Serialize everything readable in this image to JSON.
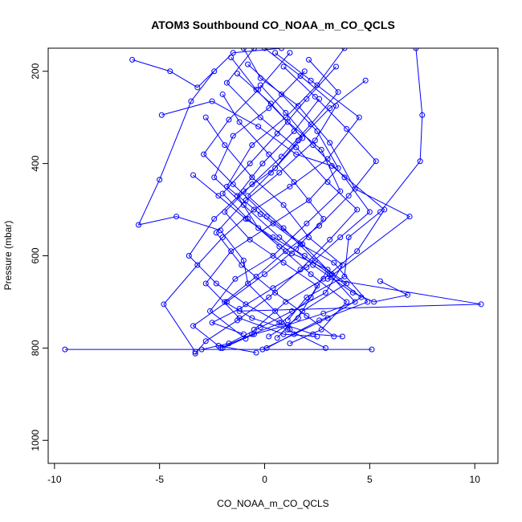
{
  "chart_data": {
    "type": "line",
    "title": "ATOM3 Southbound CO_NOAA_m_CO_QCLS",
    "xlabel": "CO_NOAA_m_CO_QCLS",
    "ylabel": "Pressure (mbar)",
    "xlim": [
      -10.3,
      11.1
    ],
    "ylim": [
      1050,
      150
    ],
    "y_reversed": true,
    "grid": false,
    "legend": "none",
    "x_ticks": [
      -10,
      -5,
      0,
      5,
      10
    ],
    "y_ticks": [
      200,
      400,
      600,
      800,
      1000
    ],
    "marker": "open-circle",
    "color": "#0000ff",
    "series": [
      {
        "x": [
          -9.5,
          5.1
        ],
        "y": [
          803,
          803
        ]
      },
      {
        "x": [
          -6.3,
          -4.5,
          -3.2,
          -1.5,
          0.8
        ],
        "y": [
          175,
          200,
          235,
          160,
          150
        ]
      },
      {
        "x": [
          -2.4,
          -3.5,
          -5.0,
          -6.0,
          -4.2,
          -2.1,
          -1.0,
          -0.8,
          0.5,
          1.2
        ],
        "y": [
          200,
          265,
          435,
          533,
          515,
          545,
          610,
          660,
          720,
          760
        ]
      },
      {
        "x": [
          7.2,
          7.5,
          7.4,
          5.5,
          4.0,
          3.8,
          2.0,
          1.1
        ],
        "y": [
          150,
          295,
          395,
          505,
          560,
          645,
          690,
          740
        ]
      },
      {
        "x": [
          -1.0,
          -0.2,
          1.6,
          3.1,
          4.3,
          6.9,
          3.0,
          10.3,
          -1.2
        ],
        "y": [
          150,
          215,
          275,
          355,
          455,
          515,
          650,
          705,
          720
        ]
      },
      {
        "x": [
          -4.9,
          -2.5,
          -0.3,
          1.5,
          3.2,
          5.7,
          4.4,
          2.8,
          1.0,
          -0.5
        ],
        "y": [
          295,
          265,
          320,
          380,
          405,
          500,
          590,
          650,
          700,
          760
        ]
      },
      {
        "x": [
          0.5,
          2.2,
          4.5,
          3.0,
          1.2,
          -0.5,
          -2.0,
          -3.2,
          -4.8,
          -3.3
        ],
        "y": [
          160,
          220,
          300,
          390,
          450,
          500,
          560,
          620,
          705,
          808
        ]
      },
      {
        "x": [
          -0.8,
          0.8,
          2.5,
          3.5,
          2.1,
          0.4,
          -1.6,
          -2.8,
          -1.2,
          0.9,
          2.5
        ],
        "y": [
          185,
          250,
          330,
          410,
          480,
          530,
          590,
          660,
          735,
          770,
          775
        ]
      },
      {
        "x": [
          1.9,
          0.2,
          -1.5,
          -2.4,
          -1.0,
          0.7,
          2.3,
          4.2,
          5.2,
          6.8,
          5.5
        ],
        "y": [
          200,
          280,
          340,
          430,
          490,
          560,
          620,
          680,
          700,
          685,
          655
        ]
      },
      {
        "x": [
          3.8,
          2.5,
          1.0,
          -0.6,
          -1.8,
          -0.2,
          1.7,
          3.3,
          4.9,
          2.6,
          0.1
        ],
        "y": [
          150,
          230,
          300,
          360,
          450,
          510,
          575,
          615,
          700,
          740,
          800
        ]
      },
      {
        "x": [
          -2.0,
          -1.2,
          0.2,
          1.4,
          2.8,
          1.5,
          0.0,
          -1.8,
          -3.4,
          -2.2,
          -0.4
        ],
        "y": [
          250,
          310,
          380,
          440,
          520,
          585,
          640,
          700,
          752,
          795,
          810
        ]
      },
      {
        "x": [
          4.8,
          3.1,
          1.6,
          0.3,
          -0.8,
          0.9,
          2.4,
          3.9,
          1.8,
          0.6
        ],
        "y": [
          220,
          280,
          350,
          420,
          470,
          540,
          610,
          660,
          720,
          778
        ]
      },
      {
        "x": [
          -1.6,
          -0.4,
          1.1,
          2.7,
          3.6,
          2.0,
          0.4,
          -1.4,
          -2.6,
          -0.9
        ],
        "y": [
          170,
          240,
          310,
          370,
          460,
          530,
          600,
          650,
          720,
          780
        ]
      },
      {
        "x": [
          2.6,
          1.4,
          -0.1,
          -1.3,
          -0.3,
          1.3,
          3.0,
          2.2,
          0.8,
          -0.6,
          -2.1
        ],
        "y": [
          260,
          330,
          400,
          470,
          540,
          595,
          630,
          690,
          745,
          770,
          800
        ]
      },
      {
        "x": [
          0.0,
          1.7,
          3.4,
          2.4,
          0.7,
          -0.9,
          -2.3,
          -1.1,
          0.5,
          2.0,
          3.3
        ],
        "y": [
          150,
          210,
          275,
          350,
          420,
          480,
          550,
          620,
          680,
          730,
          775
        ]
      },
      {
        "x": [
          -2.8,
          -1.9,
          -0.6,
          0.9,
          2.1,
          3.7,
          2.9,
          1.3,
          -0.2,
          -1.7,
          -3.0
        ],
        "y": [
          300,
          360,
          430,
          490,
          560,
          620,
          680,
          720,
          755,
          790,
          803
        ]
      },
      {
        "x": [
          3.4,
          2.0,
          0.6,
          -0.7,
          -2.0,
          -0.8,
          0.7,
          2.2,
          3.9,
          2.7,
          1.2
        ],
        "y": [
          190,
          260,
          335,
          400,
          465,
          520,
          580,
          640,
          700,
          760,
          790
        ]
      },
      {
        "x": [
          -0.2,
          1.0,
          2.3,
          3.8,
          5.0,
          3.6,
          2.0,
          0.4,
          -1.2,
          -2.5,
          -1.0
        ],
        "y": [
          230,
          290,
          360,
          430,
          505,
          560,
          625,
          670,
          715,
          745,
          770
        ]
      },
      {
        "x": [
          1.2,
          -0.3,
          -1.7,
          -2.9,
          -1.5,
          0.1,
          1.8,
          3.2,
          4.6,
          3.0,
          1.4,
          -0.1
        ],
        "y": [
          160,
          240,
          305,
          380,
          445,
          515,
          575,
          640,
          690,
          735,
          770,
          803
        ]
      },
      {
        "x": [
          -3.4,
          -2.2,
          -0.9,
          0.4,
          1.9,
          3.1,
          4.3,
          2.8,
          1.1,
          -0.5,
          -2.0
        ],
        "y": [
          425,
          470,
          520,
          560,
          600,
          640,
          700,
          725,
          750,
          770,
          800
        ]
      },
      {
        "x": [
          2.1,
          3.5,
          2.2,
          0.8,
          -0.6,
          -1.9,
          -0.7,
          0.9,
          2.5,
          1.6,
          0.2
        ],
        "y": [
          175,
          245,
          315,
          385,
          445,
          505,
          565,
          615,
          665,
          735,
          775
        ]
      },
      {
        "x": [
          -1.3,
          0.3,
          1.8,
          0.5,
          -1.0,
          -2.4,
          -3.6,
          -2.3,
          -0.9,
          0.7,
          2.3,
          3.7
        ],
        "y": [
          205,
          270,
          345,
          410,
          460,
          520,
          600,
          660,
          705,
          745,
          770,
          775
        ]
      },
      {
        "x": [
          0.9,
          2.4,
          3.9,
          5.3,
          4.0,
          2.6,
          1.0,
          -0.4,
          -1.9,
          -0.6,
          1.1,
          2.9
        ],
        "y": [
          190,
          255,
          325,
          395,
          470,
          535,
          590,
          645,
          700,
          735,
          760,
          800
        ]
      },
      {
        "x": [
          -0.5,
          -1.8,
          -0.2,
          1.5,
          3.0,
          4.4,
          3.1,
          1.7,
          0.2,
          -1.3,
          -2.8,
          -3.3
        ],
        "y": [
          150,
          225,
          300,
          365,
          440,
          500,
          565,
          630,
          690,
          740,
          785,
          812
        ]
      }
    ]
  }
}
